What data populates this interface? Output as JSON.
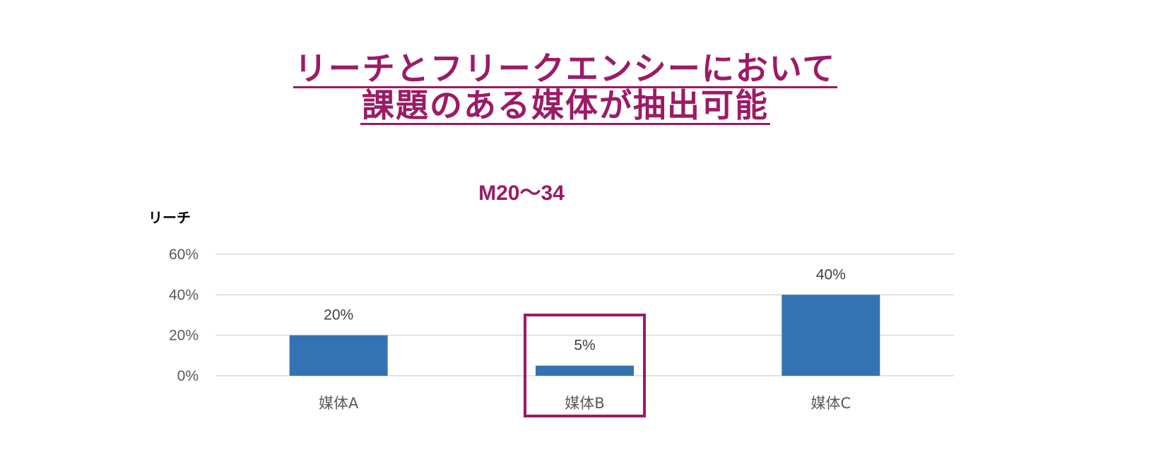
{
  "headline": {
    "line1": "リーチとフリークエンシーにおいて",
    "line2": "課題のある媒体が抽出可能"
  },
  "colors": {
    "accent": "#9B1B66",
    "bar": "#3373B4",
    "grid": "#D9D9D9",
    "axis_text": "#595959"
  },
  "chart_data": {
    "type": "bar",
    "title": "M20〜34",
    "ylabel": "リーチ",
    "xlabel": "",
    "categories": [
      "媒体A",
      "媒体B",
      "媒体C"
    ],
    "values": [
      20,
      5,
      40
    ],
    "value_labels": [
      "20%",
      "5%",
      "40%"
    ],
    "ylim": [
      0,
      60
    ],
    "yticks": [
      0,
      20,
      40,
      60
    ],
    "ytick_labels": [
      "0%",
      "20%",
      "40%",
      "60%"
    ],
    "grid": true,
    "legend": "none",
    "highlighted_category": "媒体B"
  }
}
